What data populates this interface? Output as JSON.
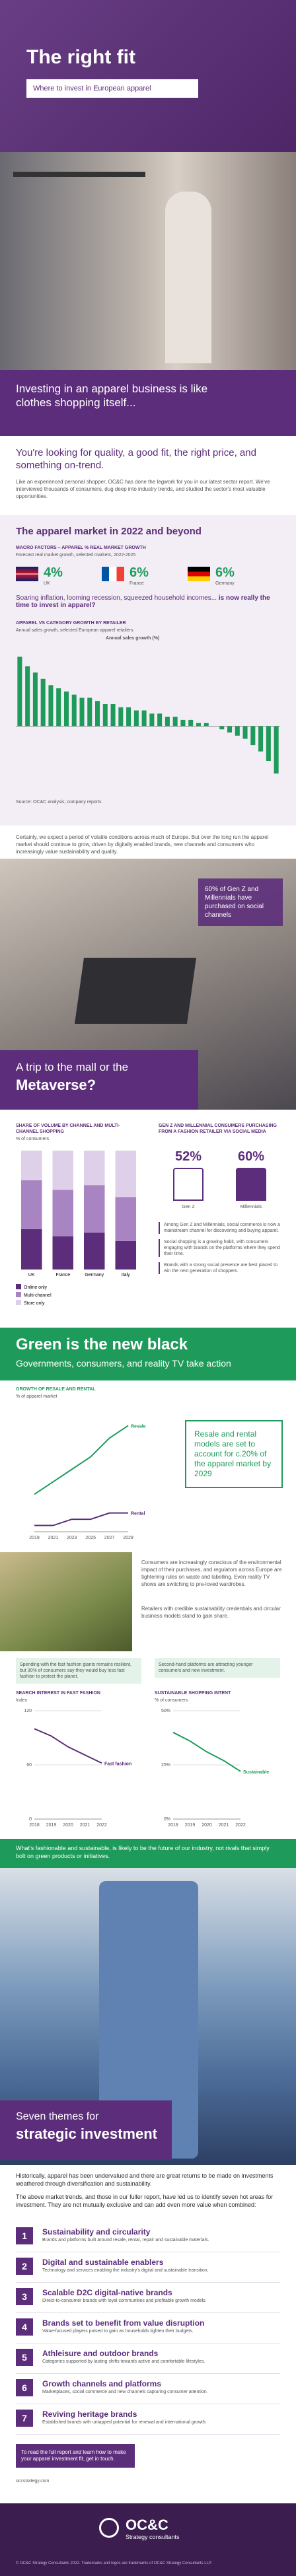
{
  "header": {
    "title": "The right fit",
    "subtitle": "Where to invest in European apparel"
  },
  "intro": {
    "headline": "Investing in an apparel business is like clothes shopping itself...",
    "lead": "You're looking for quality, a good fit, the right price, and something on-trend.",
    "body": "Like an experienced personal shopper, OC&C has done the legwork for you in our latest sector report. We've interviewed thousands of consumers, dug deep into industry trends, and studied the sector's most valuable opportunities."
  },
  "market": {
    "title": "The apparel market in 2022 and beyond",
    "macro_label": "MACRO FACTORS – APPAREL % REAL MARKET GROWTH",
    "macro_note": "Forecast real market growth, selected markets, 2022-2025",
    "countries": [
      {
        "name": "UK",
        "value": "4%"
      },
      {
        "name": "France",
        "value": "6%"
      },
      {
        "name": "Germany",
        "value": "6%"
      }
    ],
    "question_a": "Soaring inflation, looming recession, squeezed household incomes...",
    "question_b": "is now really the time to invest in apparel?",
    "growth_chart": {
      "type": "bar",
      "title": "APPAREL VS CATEGORY GROWTH BY RETAILER",
      "subtitle": "Annual sales growth, selected European apparel retailers",
      "legend": "Annual sales growth (%)",
      "values": [
        22,
        19,
        17,
        15,
        13,
        12,
        11,
        10,
        9,
        9,
        8,
        7,
        7,
        6,
        6,
        5,
        5,
        4,
        4,
        3,
        3,
        2,
        2,
        1,
        1,
        0,
        -1,
        -2,
        -3,
        -4,
        -6,
        -8,
        -11,
        -15
      ],
      "ylim": [
        -20,
        25
      ],
      "color": "#1e9b5a"
    },
    "source": "Source: OC&C analysis; company reports",
    "body": "Certainly, we expect a period of volatile conditions across much of Europe. But over the long run the apparel market should continue to grow, driven by digitally enabled brands, new channels and consumers who increasingly value sustainability and quality."
  },
  "metaverse": {
    "callout": "60% of Gen Z and Millennials have purchased on social channels",
    "title_a": "A trip to the mall or the",
    "title_b": "Metaverse?",
    "channel_chart": {
      "type": "bar",
      "title": "SHARE OF VOLUME BY CHANNEL AND MULTI-CHANNEL SHOPPING",
      "subtitle": "% of consumers",
      "categories": [
        "UK",
        "France",
        "Germany",
        "Italy"
      ],
      "series": [
        {
          "name": "Online only",
          "color": "#5c2d7a",
          "values": [
            34,
            28,
            31,
            24
          ]
        },
        {
          "name": "Multi-channel",
          "color": "#a884c2",
          "values": [
            41,
            39,
            40,
            37
          ]
        },
        {
          "name": "Store only",
          "color": "#ddd0e8",
          "values": [
            25,
            33,
            29,
            39
          ]
        }
      ],
      "ylim": [
        0,
        100
      ]
    },
    "social": {
      "title": "GEN Z AND MILLENNIAL CONSUMERS PURCHASING FROM A FASHION RETAILER VIA SOCIAL MEDIA",
      "items": [
        {
          "name": "Gen Z",
          "value": "52%"
        },
        {
          "name": "Millennials",
          "value": "60%"
        }
      ],
      "notes": [
        "Among Gen Z and Millennials, social commerce is now a mainstream channel for discovering and buying apparel.",
        "Social shopping is a growing habit, with consumers engaging with brands on the platforms where they spend their time.",
        "Brands with a strong social presence are best placed to win the next generation of shoppers."
      ]
    }
  },
  "green": {
    "title": "Green is the new black",
    "subtitle": "Governments, consumers, and reality TV take action",
    "callout": "Resale and rental models are set to account for c.20% of the apparel market by 2029",
    "resale_chart": {
      "type": "line",
      "title": "GROWTH OF RESALE AND RENTAL",
      "subtitle": "% of apparel market",
      "categories": [
        "2019",
        "2021",
        "2023",
        "2025",
        "2027",
        "2029"
      ],
      "series": [
        {
          "name": "Resale",
          "color": "#1e9b5a",
          "values": [
            6,
            8,
            10,
            12,
            15,
            17
          ]
        },
        {
          "name": "Rental",
          "color": "#5c2d7a",
          "values": [
            1,
            1,
            2,
            2,
            3,
            3
          ]
        }
      ],
      "ylim": [
        0,
        20
      ]
    },
    "body": "Consumers are increasingly conscious of the environmental impact of their purchases, and regulators across Europe are tightening rules on waste and labelling. Even reality TV shows are switching to pre-loved wardrobes.",
    "note_a": "Retailers with credible sustainability credentials and circular business models stand to gain share.",
    "note_b": "Spending with the fast fashion giants remains resilient, but 30% of consumers say they would buy less fast fashion to protect the planet.",
    "note_c": "Second-hand platforms are attracting younger consumers and new investment.",
    "chart_a": {
      "type": "line",
      "title": "SEARCH INTEREST IN FAST FASHION",
      "subtitle": "Index",
      "categories": [
        "2018",
        "2019",
        "2020",
        "2021",
        "2022"
      ],
      "series": [
        {
          "name": "Fast fashion",
          "color": "#5c2d7a",
          "values": [
            100,
            92,
            80,
            71,
            62
          ]
        }
      ],
      "ylim": [
        0,
        120
      ],
      "yticks": [
        0,
        {
          "value": 60,
          "label": "60"
        },
        {
          "value": 120,
          "label": "120"
        }
      ]
    },
    "chart_b": {
      "type": "line",
      "title": "SUSTAINABLE SHOPPING INTENT",
      "subtitle": "% of consumers",
      "categories": [
        "2018",
        "2019",
        "2020",
        "2021",
        "2022"
      ],
      "series": [
        {
          "name": "Sustainable",
          "color": "#1e9b5a",
          "values": [
            40,
            36,
            31,
            27,
            22
          ]
        }
      ],
      "ylim": [
        0,
        50
      ],
      "yticks": [
        {
          "value": 0,
          "label": "0%"
        },
        {
          "value": 25,
          "label": "25%"
        },
        {
          "value": 50,
          "label": "50%"
        }
      ]
    },
    "banner": "What's fashionable and sustainable, is likely to be the future of our industry, not rivals that simply bolt on green products or initiatives."
  },
  "themes": {
    "title_a": "Seven themes for",
    "title_b": "strategic investment",
    "para_a": "Historically, apparel has been undervalued and there are great returns to be made on investments weathered through diversification and sustainability.",
    "para_b": "The above market trends, and those in our fuller report, have led us to identify seven hot areas for investment. They are not mutually exclusive and can add even more value when combined:",
    "items": [
      {
        "n": "1",
        "title": "Sustainability and circularity",
        "text": "Brands and platforms built around resale, rental, repair and sustainable materials."
      },
      {
        "n": "2",
        "title": "Digital and sustainable enablers",
        "text": "Technology and services enabling the industry's digital and sustainable transition."
      },
      {
        "n": "3",
        "title": "Scalable D2C digital-native brands",
        "text": "Direct-to-consumer brands with loyal communities and profitable growth models."
      },
      {
        "n": "4",
        "title": "Brands set to benefit from value disruption",
        "text": "Value-focused players poised to gain as households tighten their budgets."
      },
      {
        "n": "5",
        "title": "Athleisure and outdoor brands",
        "text": "Categories supported by lasting shifts towards active and comfortable lifestyles."
      },
      {
        "n": "6",
        "title": "Growth channels and platforms",
        "text": "Marketplaces, social commerce and new channels capturing consumer attention."
      },
      {
        "n": "7",
        "title": "Reviving heritage brands",
        "text": "Established brands with untapped potential for renewal and international growth."
      }
    ],
    "closing": "To read the full report and learn how to make your apparel investment fit, get in touch."
  },
  "footer": {
    "logo": "OC&C",
    "tagline": "Strategy consultants",
    "contact": "occstrategy.com",
    "legal": "© OC&C Strategy Consultants 2022. Trademarks and logos are trademarks of OC&C Strategy Consultants LLP."
  }
}
